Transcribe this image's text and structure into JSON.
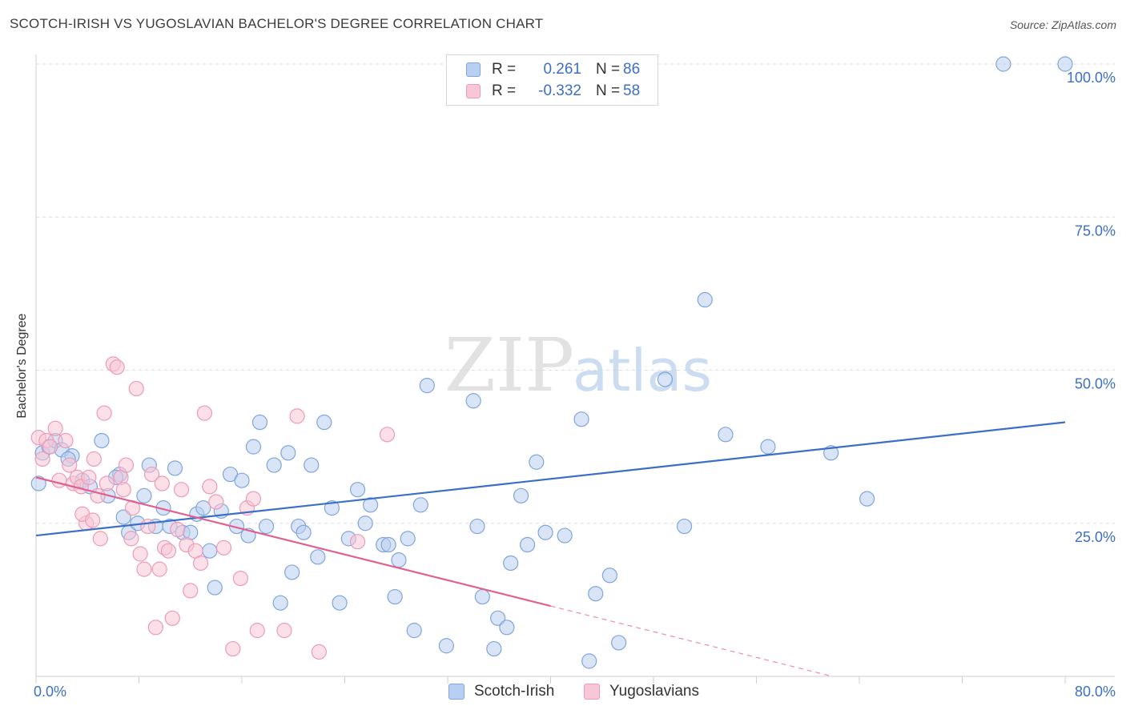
{
  "header": {
    "title": "SCOTCH-IRISH VS YUGOSLAVIAN BACHELOR'S DEGREE CORRELATION CHART",
    "source": "Source: ZipAtlas.com"
  },
  "watermark": {
    "zip": "ZIP",
    "atlas": "atlas"
  },
  "legend": {
    "r_label": "R =",
    "n_label": "N =",
    "series": [
      {
        "name": "Scotch-Irish",
        "r": "0.261",
        "n": "86",
        "color": "#3b6fc6",
        "fill": "#b9cff0",
        "stroke": "#7fa5dd"
      },
      {
        "name": "Yugoslavians",
        "r": "-0.332",
        "n": "58",
        "color": "#e0608f",
        "fill": "#f8c7d6",
        "stroke": "#ee9ab6"
      }
    ]
  },
  "chart_data": {
    "type": "scatter",
    "title": "SCOTCH-IRISH VS YUGOSLAVIAN BACHELOR'S DEGREE CORRELATION CHART",
    "xlabel": "",
    "ylabel": "Bachelor's Degree",
    "xlim": [
      0,
      80
    ],
    "ylim": [
      0,
      100
    ],
    "x_tick_labels": {
      "min": "0.0%",
      "max": "80.0%"
    },
    "y_ticks": [
      25,
      50,
      75,
      100
    ],
    "y_tick_labels": [
      "25.0%",
      "50.0%",
      "75.0%",
      "100.0%"
    ],
    "grid": true,
    "series": [
      {
        "name": "Scotch-Irish",
        "trend": {
          "x0": 0,
          "y0": 23.0,
          "x1": 80,
          "y1": 41.5,
          "dashed_to": null
        },
        "points": [
          [
            0.2,
            31.5
          ],
          [
            0.5,
            36.5
          ],
          [
            1.0,
            37.5
          ],
          [
            1.5,
            38.5
          ],
          [
            2.0,
            37.0
          ],
          [
            2.8,
            36.0
          ],
          [
            3.6,
            32.0
          ],
          [
            4.2,
            31.0
          ],
          [
            5.1,
            38.5
          ],
          [
            5.6,
            29.5
          ],
          [
            6.5,
            33.0
          ],
          [
            6.8,
            26.0
          ],
          [
            7.2,
            23.5
          ],
          [
            7.9,
            25.0
          ],
          [
            8.4,
            29.5
          ],
          [
            8.8,
            34.5
          ],
          [
            9.3,
            24.5
          ],
          [
            9.9,
            27.5
          ],
          [
            10.4,
            24.5
          ],
          [
            10.8,
            34.0
          ],
          [
            11.4,
            23.5
          ],
          [
            12.0,
            23.5
          ],
          [
            12.5,
            26.5
          ],
          [
            13.0,
            27.5
          ],
          [
            13.5,
            20.5
          ],
          [
            13.9,
            14.5
          ],
          [
            14.4,
            27.0
          ],
          [
            15.1,
            33.0
          ],
          [
            15.6,
            24.5
          ],
          [
            16.0,
            32.0
          ],
          [
            16.5,
            23.0
          ],
          [
            16.9,
            37.5
          ],
          [
            17.4,
            41.5
          ],
          [
            17.9,
            24.5
          ],
          [
            18.5,
            34.5
          ],
          [
            19.0,
            12.0
          ],
          [
            19.6,
            36.5
          ],
          [
            19.9,
            17.0
          ],
          [
            20.4,
            24.5
          ],
          [
            20.8,
            23.5
          ],
          [
            21.4,
            34.5
          ],
          [
            21.9,
            19.5
          ],
          [
            22.4,
            41.5
          ],
          [
            23.0,
            27.5
          ],
          [
            23.6,
            12.0
          ],
          [
            24.3,
            22.5
          ],
          [
            25.0,
            30.5
          ],
          [
            25.6,
            25.0
          ],
          [
            26.0,
            28.0
          ],
          [
            27.0,
            21.5
          ],
          [
            27.4,
            21.5
          ],
          [
            27.9,
            13.0
          ],
          [
            28.2,
            19.0
          ],
          [
            28.9,
            22.5
          ],
          [
            29.4,
            7.5
          ],
          [
            29.9,
            28.0
          ],
          [
            30.4,
            47.5
          ],
          [
            31.9,
            5.0
          ],
          [
            34.0,
            45.0
          ],
          [
            34.3,
            24.5
          ],
          [
            34.7,
            13.0
          ],
          [
            35.6,
            4.5
          ],
          [
            35.9,
            9.5
          ],
          [
            36.6,
            8.0
          ],
          [
            36.9,
            18.5
          ],
          [
            37.7,
            29.5
          ],
          [
            38.2,
            21.5
          ],
          [
            38.9,
            35.0
          ],
          [
            39.6,
            23.5
          ],
          [
            41.1,
            23.0
          ],
          [
            42.4,
            42.0
          ],
          [
            43.0,
            2.5
          ],
          [
            43.5,
            13.5
          ],
          [
            44.6,
            16.5
          ],
          [
            45.3,
            5.5
          ],
          [
            48.9,
            48.5
          ],
          [
            50.4,
            24.5
          ],
          [
            52.0,
            61.5
          ],
          [
            53.6,
            39.5
          ],
          [
            56.9,
            37.5
          ],
          [
            61.8,
            36.5
          ],
          [
            64.6,
            29.0
          ],
          [
            75.2,
            100.0
          ],
          [
            80.0,
            100.0
          ],
          [
            2.5,
            35.5
          ],
          [
            6.2,
            32.5
          ]
        ]
      },
      {
        "name": "Yugoslavians",
        "trend": {
          "x0": 0,
          "y0": 32.5,
          "x1": 40,
          "y1": 11.5,
          "dashed_to": {
            "x": 80,
            "y": -9.5
          }
        },
        "points": [
          [
            0.2,
            39.0
          ],
          [
            0.5,
            35.5
          ],
          [
            0.8,
            38.5
          ],
          [
            1.1,
            37.5
          ],
          [
            1.5,
            40.5
          ],
          [
            1.8,
            32.0
          ],
          [
            2.3,
            38.5
          ],
          [
            2.6,
            34.5
          ],
          [
            2.9,
            31.5
          ],
          [
            3.2,
            32.5
          ],
          [
            3.5,
            31.0
          ],
          [
            3.9,
            25.0
          ],
          [
            4.1,
            32.5
          ],
          [
            4.5,
            35.5
          ],
          [
            4.8,
            29.5
          ],
          [
            5.0,
            22.5
          ],
          [
            5.3,
            43.0
          ],
          [
            5.5,
            31.5
          ],
          [
            6.0,
            51.0
          ],
          [
            6.3,
            50.5
          ],
          [
            6.6,
            32.5
          ],
          [
            7.0,
            34.5
          ],
          [
            7.4,
            22.5
          ],
          [
            7.8,
            47.0
          ],
          [
            8.1,
            20.0
          ],
          [
            8.4,
            17.5
          ],
          [
            8.7,
            24.5
          ],
          [
            9.0,
            33.0
          ],
          [
            9.3,
            8.0
          ],
          [
            9.6,
            17.5
          ],
          [
            10.0,
            21.0
          ],
          [
            10.3,
            20.5
          ],
          [
            10.6,
            9.5
          ],
          [
            11.0,
            24.0
          ],
          [
            11.3,
            30.5
          ],
          [
            11.7,
            21.5
          ],
          [
            12.0,
            14.0
          ],
          [
            12.4,
            20.5
          ],
          [
            12.8,
            18.5
          ],
          [
            13.1,
            43.0
          ],
          [
            13.5,
            31.0
          ],
          [
            14.0,
            28.5
          ],
          [
            14.6,
            21.0
          ],
          [
            15.3,
            4.5
          ],
          [
            15.9,
            16.0
          ],
          [
            16.4,
            27.5
          ],
          [
            16.9,
            29.0
          ],
          [
            17.2,
            7.5
          ],
          [
            19.3,
            7.5
          ],
          [
            20.3,
            42.5
          ],
          [
            22.0,
            4.0
          ],
          [
            25.0,
            22.0
          ],
          [
            27.3,
            39.5
          ],
          [
            3.6,
            26.5
          ],
          [
            4.4,
            25.5
          ],
          [
            6.8,
            30.5
          ],
          [
            7.5,
            27.5
          ],
          [
            9.8,
            31.5
          ]
        ]
      }
    ]
  }
}
